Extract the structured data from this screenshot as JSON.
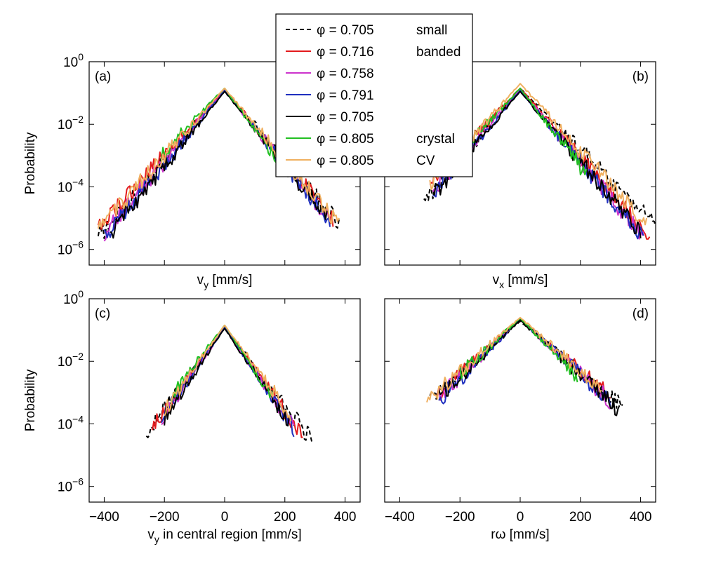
{
  "figure": {
    "legend": {
      "entries": [
        {
          "phi": "φ = 0.705",
          "note": "small",
          "color": "#000000",
          "dash": true
        },
        {
          "phi": "φ = 0.716",
          "note": "banded",
          "color": "#e31a1c",
          "dash": false
        },
        {
          "phi": "φ = 0.758",
          "note": "",
          "color": "#cc33cc",
          "dash": false
        },
        {
          "phi": "φ = 0.791",
          "note": "",
          "color": "#1f2fbf",
          "dash": false
        },
        {
          "phi": "φ = 0.705",
          "note": "",
          "color": "#000000",
          "dash": false
        },
        {
          "phi": "φ = 0.805",
          "note": "crystal",
          "color": "#22c022",
          "dash": false
        },
        {
          "phi": "φ = 0.805",
          "note": "CV",
          "color": "#f0b060",
          "dash": false
        }
      ]
    }
  },
  "chart_data": [
    {
      "type": "line",
      "panel": "(a)",
      "xlabel": "v_y  [mm/s]",
      "ylabel": "Probability",
      "xlim": [
        -450,
        450
      ],
      "ylim_log10": [
        -6.5,
        0
      ],
      "log_y": true,
      "ytick_labels": [
        "10^0",
        "10^-2",
        "10^-4",
        "10^-6"
      ],
      "xtick_labels": [],
      "series": [
        {
          "color": "#000000",
          "dash": true,
          "peak_log10": -0.9,
          "kl": 4.5,
          "kr": 4.5,
          "xmin": -420,
          "xmax": 380
        },
        {
          "color": "#e31a1c",
          "dash": false,
          "peak_log10": -0.9,
          "kl": 4.2,
          "kr": 4.6,
          "xmin": -420,
          "xmax": 360
        },
        {
          "color": "#cc33cc",
          "dash": false,
          "peak_log10": -0.9,
          "kl": 4.6,
          "kr": 4.8,
          "xmin": -400,
          "xmax": 350
        },
        {
          "color": "#1f2fbf",
          "dash": false,
          "peak_log10": -0.92,
          "kl": 4.7,
          "kr": 4.8,
          "xmin": -400,
          "xmax": 350
        },
        {
          "color": "#000000",
          "dash": false,
          "peak_log10": -0.95,
          "kl": 4.8,
          "kr": 4.7,
          "xmin": -380,
          "xmax": 340
        },
        {
          "color": "#22c022",
          "dash": false,
          "peak_log10": -0.85,
          "kl": 4.0,
          "kr": 5.2,
          "xmin": -210,
          "xmax": 170
        },
        {
          "color": "#f0b060",
          "dash": false,
          "peak_log10": -0.85,
          "kl": 4.3,
          "kr": 4.6,
          "xmin": -420,
          "xmax": 380
        }
      ]
    },
    {
      "type": "line",
      "panel": "(b)",
      "xlabel": "v_x  [mm/s]",
      "ylabel": "",
      "xlim": [
        -450,
        450
      ],
      "ylim_log10": [
        -6.5,
        0
      ],
      "log_y": true,
      "ytick_labels": [],
      "xtick_labels": [],
      "series": [
        {
          "color": "#000000",
          "dash": true,
          "peak_log10": -0.85,
          "kl": 4.6,
          "kr": 3.9,
          "xmin": -320,
          "xmax": 450
        },
        {
          "color": "#e31a1c",
          "dash": false,
          "peak_log10": -0.85,
          "kl": 4.1,
          "kr": 4.4,
          "xmin": -300,
          "xmax": 430
        },
        {
          "color": "#cc33cc",
          "dash": false,
          "peak_log10": -0.9,
          "kl": 4.4,
          "kr": 4.6,
          "xmin": -290,
          "xmax": 410
        },
        {
          "color": "#1f2fbf",
          "dash": false,
          "peak_log10": -0.92,
          "kl": 4.5,
          "kr": 4.6,
          "xmin": -290,
          "xmax": 410
        },
        {
          "color": "#000000",
          "dash": false,
          "peak_log10": -0.95,
          "kl": 4.6,
          "kr": 4.5,
          "xmin": -290,
          "xmax": 400
        },
        {
          "color": "#22c022",
          "dash": false,
          "peak_log10": -0.85,
          "kl": 4.1,
          "kr": 5.0,
          "xmin": -240,
          "xmax": 220
        },
        {
          "color": "#f0b060",
          "dash": false,
          "peak_log10": -0.7,
          "kl": 4.3,
          "kr": 4.3,
          "xmin": -300,
          "xmax": 420
        }
      ]
    },
    {
      "type": "line",
      "panel": "(c)",
      "xlabel": "v_y in central region  [mm/s]",
      "ylabel": "Probability",
      "xlim": [
        -450,
        450
      ],
      "ylim_log10": [
        -6.5,
        0
      ],
      "log_y": true,
      "ytick_labels": [
        "10^0",
        "10^-2",
        "10^-4",
        "10^-6"
      ],
      "xtick_labels": [
        "−400",
        "−200",
        "0",
        "200",
        "400"
      ],
      "series": [
        {
          "color": "#000000",
          "dash": true,
          "peak_log10": -0.9,
          "kl": 5.2,
          "kr": 5.0,
          "xmin": -260,
          "xmax": 290
        },
        {
          "color": "#e31a1c",
          "dash": false,
          "peak_log10": -0.9,
          "kl": 5.4,
          "kr": 5.4,
          "xmin": -240,
          "xmax": 260
        },
        {
          "color": "#cc33cc",
          "dash": false,
          "peak_log10": -0.92,
          "kl": 5.6,
          "kr": 5.6,
          "xmin": -210,
          "xmax": 230
        },
        {
          "color": "#1f2fbf",
          "dash": false,
          "peak_log10": -0.92,
          "kl": 5.6,
          "kr": 5.6,
          "xmin": -210,
          "xmax": 230
        },
        {
          "color": "#000000",
          "dash": false,
          "peak_log10": -0.95,
          "kl": 5.7,
          "kr": 5.6,
          "xmin": -200,
          "xmax": 220
        },
        {
          "color": "#22c022",
          "dash": false,
          "peak_log10": -0.85,
          "kl": 5.0,
          "kr": 5.8,
          "xmin": -180,
          "xmax": 160
        },
        {
          "color": "#f0b060",
          "dash": false,
          "peak_log10": -0.85,
          "kl": 5.4,
          "kr": 5.2,
          "xmin": -200,
          "xmax": 220
        }
      ]
    },
    {
      "type": "line",
      "panel": "(d)",
      "xlabel": "rω  [mm/s]",
      "ylabel": "",
      "xlim": [
        -450,
        450
      ],
      "ylim_log10": [
        -6.5,
        0
      ],
      "log_y": true,
      "ytick_labels": [],
      "xtick_labels": [
        "−400",
        "−200",
        "0",
        "200",
        "400"
      ],
      "series": [
        {
          "color": "#000000",
          "dash": true,
          "peak_log10": -0.72,
          "kl": 3.4,
          "kr": 3.2,
          "xmin": -300,
          "xmax": 340
        },
        {
          "color": "#e31a1c",
          "dash": false,
          "peak_log10": -0.65,
          "kl": 3.6,
          "kr": 3.3,
          "xmin": -280,
          "xmax": 300
        },
        {
          "color": "#cc33cc",
          "dash": false,
          "peak_log10": -0.65,
          "kl": 3.7,
          "kr": 3.5,
          "xmin": -270,
          "xmax": 300
        },
        {
          "color": "#1f2fbf",
          "dash": false,
          "peak_log10": -0.66,
          "kl": 3.8,
          "kr": 3.5,
          "xmin": -270,
          "xmax": 300
        },
        {
          "color": "#000000",
          "dash": false,
          "peak_log10": -0.68,
          "kl": 3.7,
          "kr": 3.5,
          "xmin": -280,
          "xmax": 330
        },
        {
          "color": "#22c022",
          "dash": false,
          "peak_log10": -0.62,
          "kl": 3.6,
          "kr": 4.0,
          "xmin": -200,
          "xmax": 190
        },
        {
          "color": "#f0b060",
          "dash": false,
          "peak_log10": -0.6,
          "kl": 3.5,
          "kr": 3.4,
          "xmin": -310,
          "xmax": 270
        }
      ]
    }
  ]
}
